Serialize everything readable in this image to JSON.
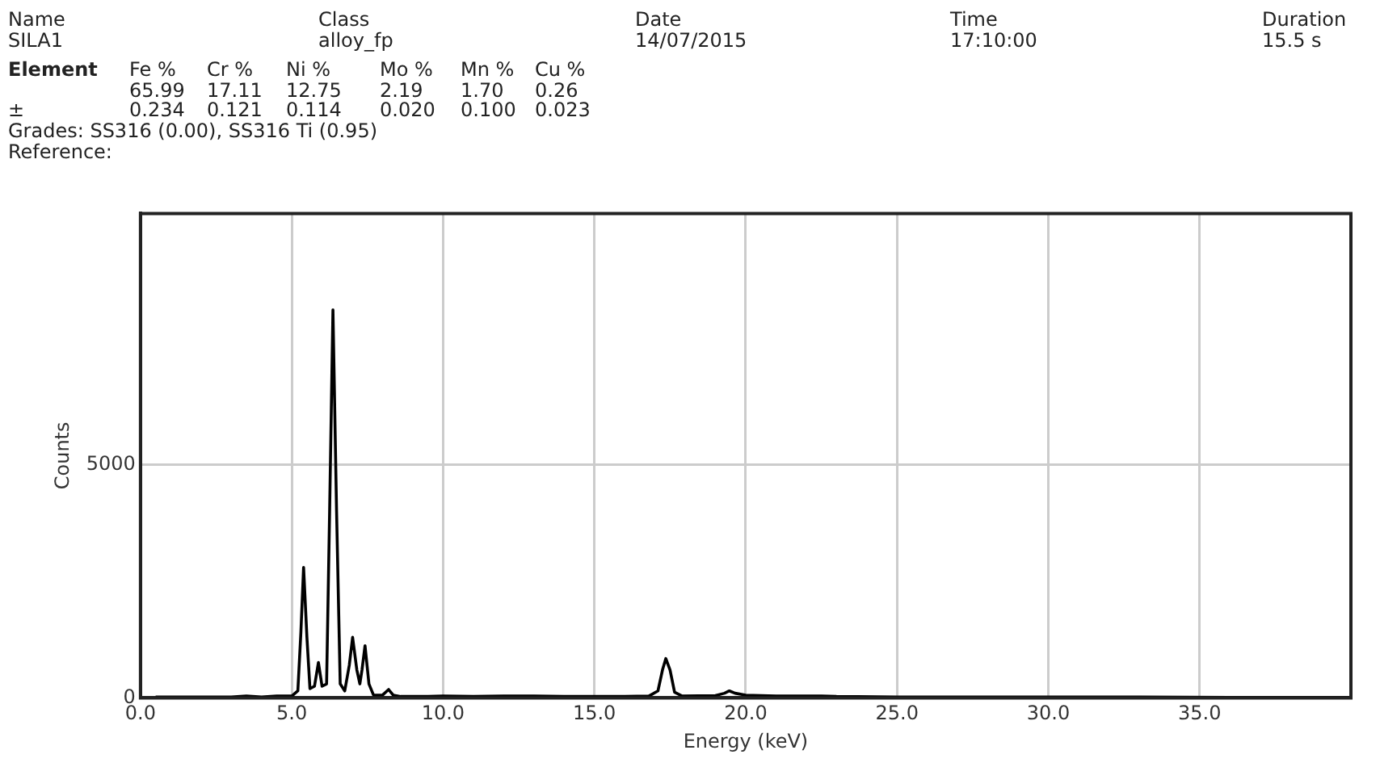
{
  "chart_data": {
    "type": "line",
    "xlabel": "Energy (keV)",
    "ylabel": "Counts",
    "annotations": [
      "Name",
      "SILA1",
      "Class",
      "alloy_fp",
      "Date",
      "14/07/2015",
      "Time",
      "17:10:00",
      "Duration",
      "15.5 s",
      "Element",
      "Fe %",
      "Cr %",
      "Ni %",
      "Mo %",
      "Mn %",
      "Cu %",
      "65.99",
      "17.11",
      "12.75",
      "2.19",
      "1.70",
      "0.26",
      "±",
      "0.234",
      "0.121",
      "0.114",
      "0.020",
      "0.100",
      "0.023",
      "Grades: SS316 (0.00), SS316 Ti (0.95)",
      "Reference:"
    ],
    "series": [
      {
        "color": "#000000",
        "x": [
          0.5,
          1.0,
          2.0,
          3.0,
          3.5,
          4.0,
          4.5,
          5.0,
          5.2,
          5.3,
          5.39,
          5.5,
          5.6,
          5.75,
          5.88,
          6.0,
          6.15,
          6.25,
          6.36,
          6.48,
          6.6,
          6.75,
          6.9,
          7.01,
          7.15,
          7.25,
          7.32,
          7.42,
          7.55,
          7.7,
          8.0,
          8.2,
          8.35,
          8.6,
          9.5,
          10.0,
          11.0,
          12.0,
          13.0,
          14.0,
          15.0,
          16.0,
          16.8,
          17.1,
          17.25,
          17.36,
          17.5,
          17.65,
          17.9,
          19.0,
          19.3,
          19.46,
          19.65,
          20.0,
          21.0,
          22.5,
          23.0,
          25.0,
          27.0,
          30.0,
          33.0,
          36.0,
          40.0
        ],
        "values": [
          20,
          20,
          20,
          20,
          40,
          20,
          40,
          40,
          150,
          1400,
          2800,
          1300,
          200,
          250,
          760,
          250,
          300,
          4000,
          8330,
          4000,
          300,
          150,
          700,
          1300,
          600,
          300,
          600,
          1120,
          300,
          60,
          60,
          180,
          60,
          30,
          30,
          40,
          30,
          40,
          40,
          30,
          30,
          30,
          40,
          150,
          600,
          845,
          600,
          120,
          40,
          50,
          100,
          150,
          100,
          60,
          40,
          40,
          30,
          20,
          20,
          20,
          20,
          10,
          10
        ]
      }
    ],
    "xlim": [
      0,
      40
    ],
    "xticks": [
      {
        "value": 0,
        "label": "0.0"
      },
      {
        "value": 5,
        "label": "5.0"
      },
      {
        "value": 10,
        "label": "10.0"
      },
      {
        "value": 15,
        "label": "15.0"
      },
      {
        "value": 20,
        "label": "20.0"
      },
      {
        "value": 25,
        "label": "25.0"
      },
      {
        "value": 30,
        "label": "30.0"
      },
      {
        "value": 35,
        "label": "35.0"
      }
    ],
    "ylim": [
      0,
      10400
    ],
    "yticks": [
      0,
      5000
    ],
    "grid": true,
    "legend": false,
    "marker": "none",
    "line_style": "solid"
  }
}
